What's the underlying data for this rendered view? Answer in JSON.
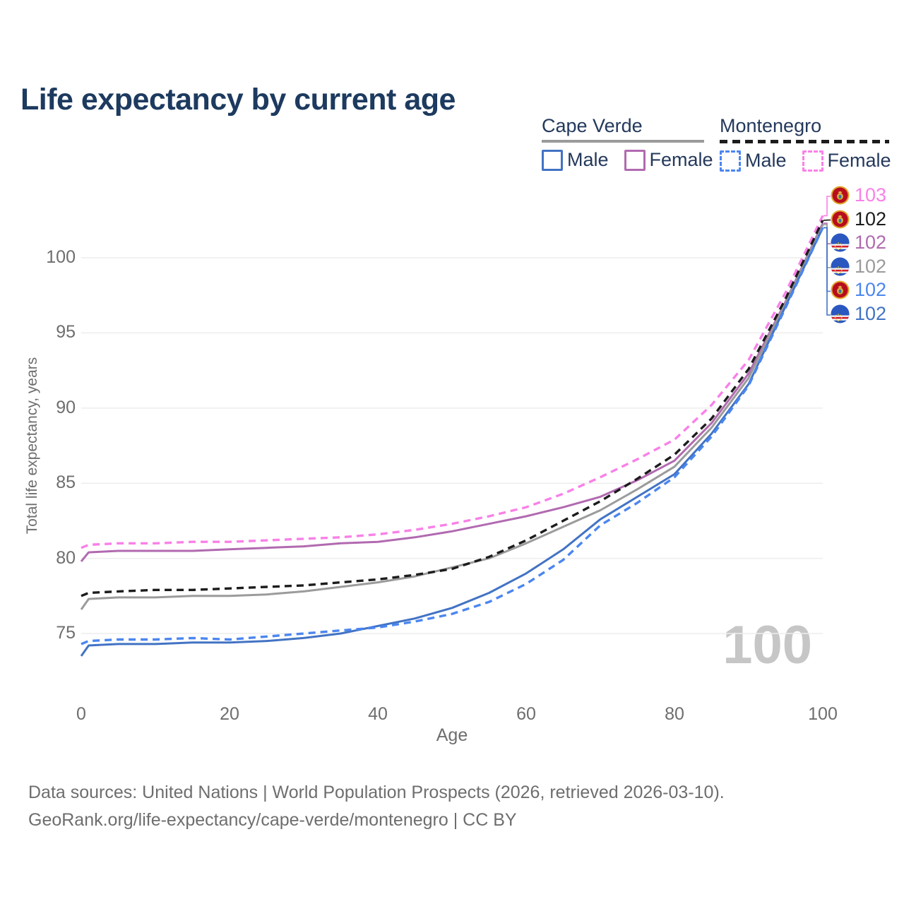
{
  "title": "Life expectancy by current age",
  "legend": {
    "cape_verde": {
      "title": "Cape Verde",
      "male": "Male",
      "female": "Female"
    },
    "montenegro": {
      "title": "Montenegro",
      "male": "Male",
      "female": "Female"
    }
  },
  "colors": {
    "title_text": "#1d3a5f",
    "tick_text": "#6e6e6e",
    "grid": "#ededed",
    "watermark": "#c6c6c6"
  },
  "chart_data": {
    "type": "line",
    "title": "Life expectancy by current age",
    "xlabel": "Age",
    "ylabel": "Total life expectancy, years",
    "xlim": [
      0,
      100
    ],
    "ylim": [
      75,
      100
    ],
    "grid": "horizontal",
    "x_ticks": [
      0,
      20,
      40,
      60,
      80,
      100
    ],
    "y_ticks": [
      100,
      95,
      90,
      85,
      80,
      75
    ],
    "x": [
      0,
      1,
      5,
      10,
      15,
      20,
      25,
      30,
      35,
      40,
      45,
      50,
      55,
      60,
      65,
      70,
      75,
      80,
      85,
      90,
      95,
      100
    ],
    "series": [
      {
        "id": "cv_female",
        "name": "Cape Verde Female",
        "color": "#b16ab0",
        "dash": "solid",
        "values": [
          79.8,
          80.4,
          80.5,
          80.5,
          80.5,
          80.6,
          80.7,
          80.8,
          81.0,
          81.1,
          81.4,
          81.8,
          82.3,
          82.8,
          83.4,
          84.1,
          85.2,
          86.5,
          89.0,
          92.3,
          97.1,
          102.3
        ]
      },
      {
        "id": "cv_both",
        "name": "Cape Verde Both sexes",
        "color": "#9b9b9b",
        "dash": "solid",
        "values": [
          76.6,
          77.3,
          77.4,
          77.4,
          77.5,
          77.5,
          77.6,
          77.8,
          78.1,
          78.4,
          78.8,
          79.4,
          80.0,
          81.0,
          82.1,
          83.2,
          84.6,
          86.1,
          88.7,
          92.0,
          97.0,
          102.2
        ]
      },
      {
        "id": "cv_male",
        "name": "Cape Verde Male",
        "color": "#4273c4",
        "dash": "solid",
        "values": [
          73.5,
          74.2,
          74.3,
          74.3,
          74.4,
          74.4,
          74.5,
          74.7,
          75.0,
          75.5,
          76.0,
          76.7,
          77.7,
          79.0,
          80.6,
          82.6,
          84.1,
          85.6,
          88.3,
          91.6,
          96.8,
          102.0
        ]
      },
      {
        "id": "mne_female",
        "name": "Montenegro Female",
        "color": "#f980e8",
        "dash": "dashed",
        "values": [
          80.7,
          80.9,
          81.0,
          81.0,
          81.1,
          81.1,
          81.2,
          81.3,
          81.4,
          81.6,
          81.9,
          82.3,
          82.8,
          83.4,
          84.3,
          85.4,
          86.6,
          87.9,
          90.2,
          93.2,
          97.7,
          102.8
        ]
      },
      {
        "id": "mne_both",
        "name": "Montenegro Both sexes",
        "color": "#1c1c1c",
        "dash": "dashed",
        "values": [
          77.5,
          77.7,
          77.8,
          77.9,
          77.9,
          78.0,
          78.1,
          78.2,
          78.4,
          78.6,
          78.9,
          79.3,
          80.1,
          81.2,
          82.5,
          83.8,
          85.3,
          86.9,
          89.3,
          92.6,
          97.3,
          102.5
        ]
      },
      {
        "id": "mne_male",
        "name": "Montenegro Male",
        "color": "#4b86f0",
        "dash": "dashed",
        "values": [
          74.3,
          74.5,
          74.6,
          74.6,
          74.7,
          74.6,
          74.8,
          75.0,
          75.2,
          75.4,
          75.8,
          76.3,
          77.1,
          78.3,
          79.9,
          82.2,
          83.7,
          85.4,
          88.1,
          91.5,
          96.7,
          102.0
        ]
      }
    ],
    "end_labels": [
      {
        "series": "mne_female",
        "value": "103",
        "flag": "montenegro"
      },
      {
        "series": "mne_both",
        "value": "102",
        "flag": "montenegro"
      },
      {
        "series": "cv_female",
        "value": "102",
        "flag": "cape-verde"
      },
      {
        "series": "cv_both",
        "value": "102",
        "flag": "cape-verde"
      },
      {
        "series": "mne_male",
        "value": "102",
        "flag": "montenegro"
      },
      {
        "series": "cv_male",
        "value": "102",
        "flag": "cape-verde"
      }
    ],
    "watermark": "100"
  },
  "footer": {
    "line1": "Data sources: United Nations | World Population Prospects (2026, retrieved 2026-03-10).",
    "line2": "GeoRank.org/life-expectancy/cape-verde/montenegro | CC BY"
  }
}
